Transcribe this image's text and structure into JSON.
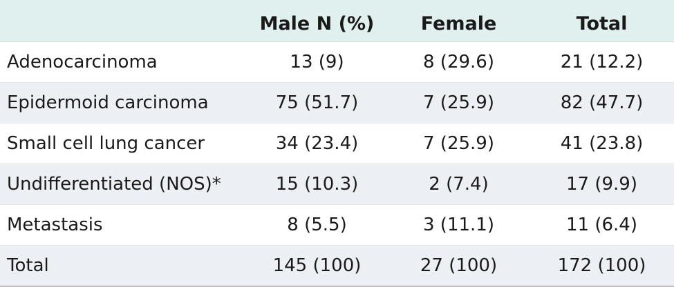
{
  "table": {
    "headers": [
      "",
      "Male N (%)",
      "Female",
      "Total"
    ],
    "rows": [
      {
        "label": "Adenocarcinoma",
        "male": "13 (9)",
        "female": "8 (29.6)",
        "total": "21 (12.2)"
      },
      {
        "label": "Epidermoid carcinoma",
        "male": "75 (51.7)",
        "female": "7 (25.9)",
        "total": "82 (47.7)"
      },
      {
        "label": "Small cell lung cancer",
        "male": "34 (23.4)",
        "female": "7 (25.9)",
        "total": "41 (23.8)"
      },
      {
        "label": "Undifferentiated (NOS)*",
        "male": "15 (10.3)",
        "female": "2 (7.4)",
        "total": "17 (9.9)"
      },
      {
        "label": "Metastasis",
        "male": "8 (5.5)",
        "female": "3 (11.1)",
        "total": "11 (6.4)"
      },
      {
        "label": "Total",
        "male": "145 (100)",
        "female": "27 (100)",
        "total": "172 (100)"
      }
    ]
  },
  "colors": {
    "header_background": "#dff0ee",
    "shaded_row_background": "#ecf0f4"
  }
}
